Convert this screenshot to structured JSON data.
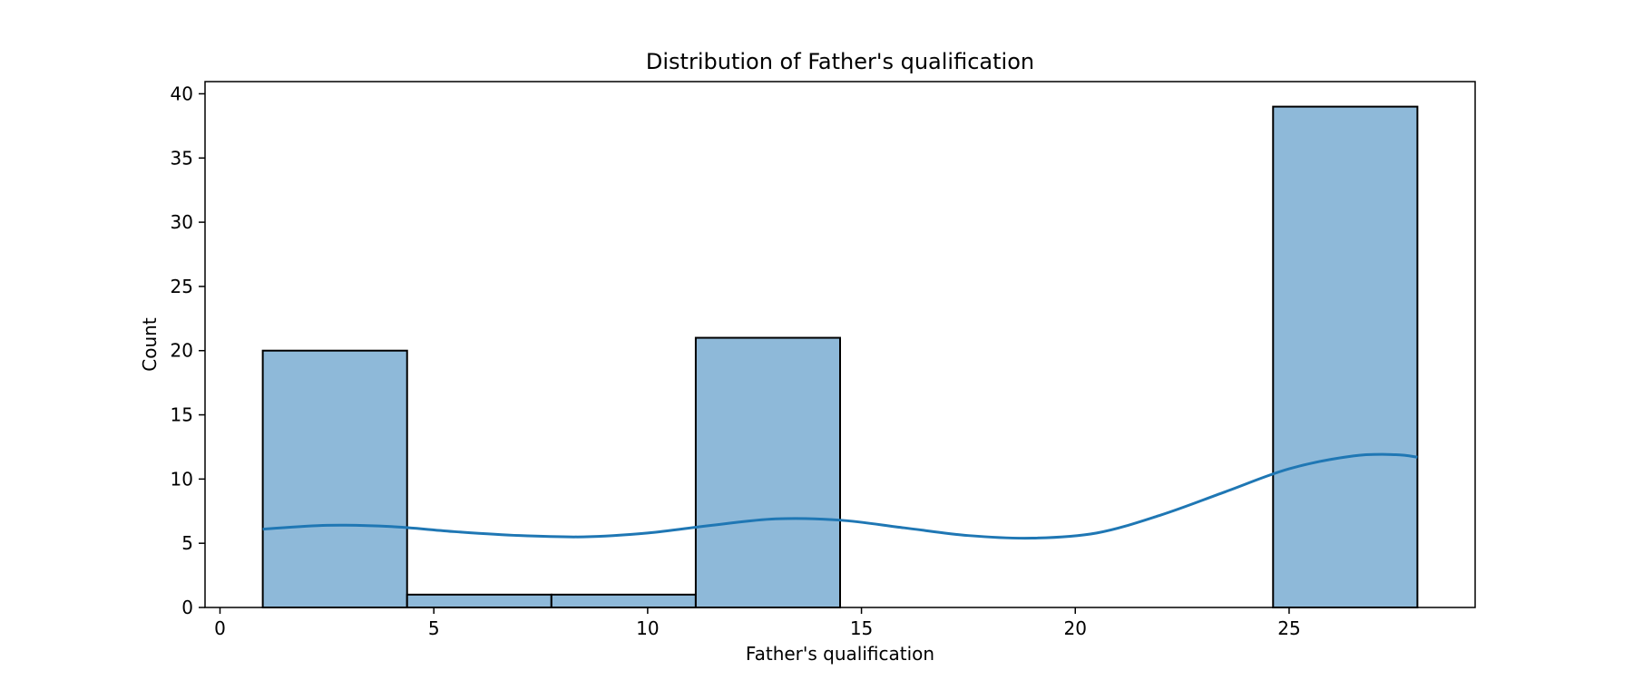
{
  "chart_data": {
    "type": "bar",
    "subtype": "histogram",
    "title": "Distribution of Father's qualification",
    "xlabel": "Father's qualification",
    "ylabel": "Count",
    "xlim": [
      -0.35,
      29.35
    ],
    "ylim": [
      0,
      40.95
    ],
    "xticks": [
      0,
      5,
      10,
      15,
      20,
      25
    ],
    "yticks": [
      0,
      5,
      10,
      15,
      20,
      25,
      30,
      35,
      40
    ],
    "grid": false,
    "legend": "none",
    "bins": [
      {
        "x0": 1.0,
        "x1": 4.375,
        "count": 20
      },
      {
        "x0": 4.375,
        "x1": 7.75,
        "count": 1
      },
      {
        "x0": 7.75,
        "x1": 11.125,
        "count": 1
      },
      {
        "x0": 11.125,
        "x1": 14.5,
        "count": 21
      },
      {
        "x0": 14.5,
        "x1": 17.875,
        "count": 0
      },
      {
        "x0": 17.875,
        "x1": 21.25,
        "count": 0
      },
      {
        "x0": 21.25,
        "x1": 24.625,
        "count": 0
      },
      {
        "x0": 24.625,
        "x1": 28.0,
        "count": 39
      }
    ],
    "kde": {
      "x": [
        1.0,
        2.5,
        4.0,
        5.5,
        7.0,
        8.5,
        10.0,
        11.5,
        13.0,
        14.5,
        16.0,
        17.5,
        19.0,
        20.5,
        22.0,
        23.5,
        25.0,
        26.5,
        27.5,
        28.0
      ],
      "y": [
        6.1,
        6.4,
        6.3,
        5.9,
        5.6,
        5.5,
        5.8,
        6.4,
        6.9,
        6.8,
        6.2,
        5.6,
        5.4,
        5.8,
        7.2,
        9.0,
        10.8,
        11.8,
        11.9,
        11.7
      ]
    },
    "colors": {
      "bar_fill": "#8eb9d9",
      "bar_edge": "#000000",
      "kde_line": "#1f77b4"
    }
  }
}
